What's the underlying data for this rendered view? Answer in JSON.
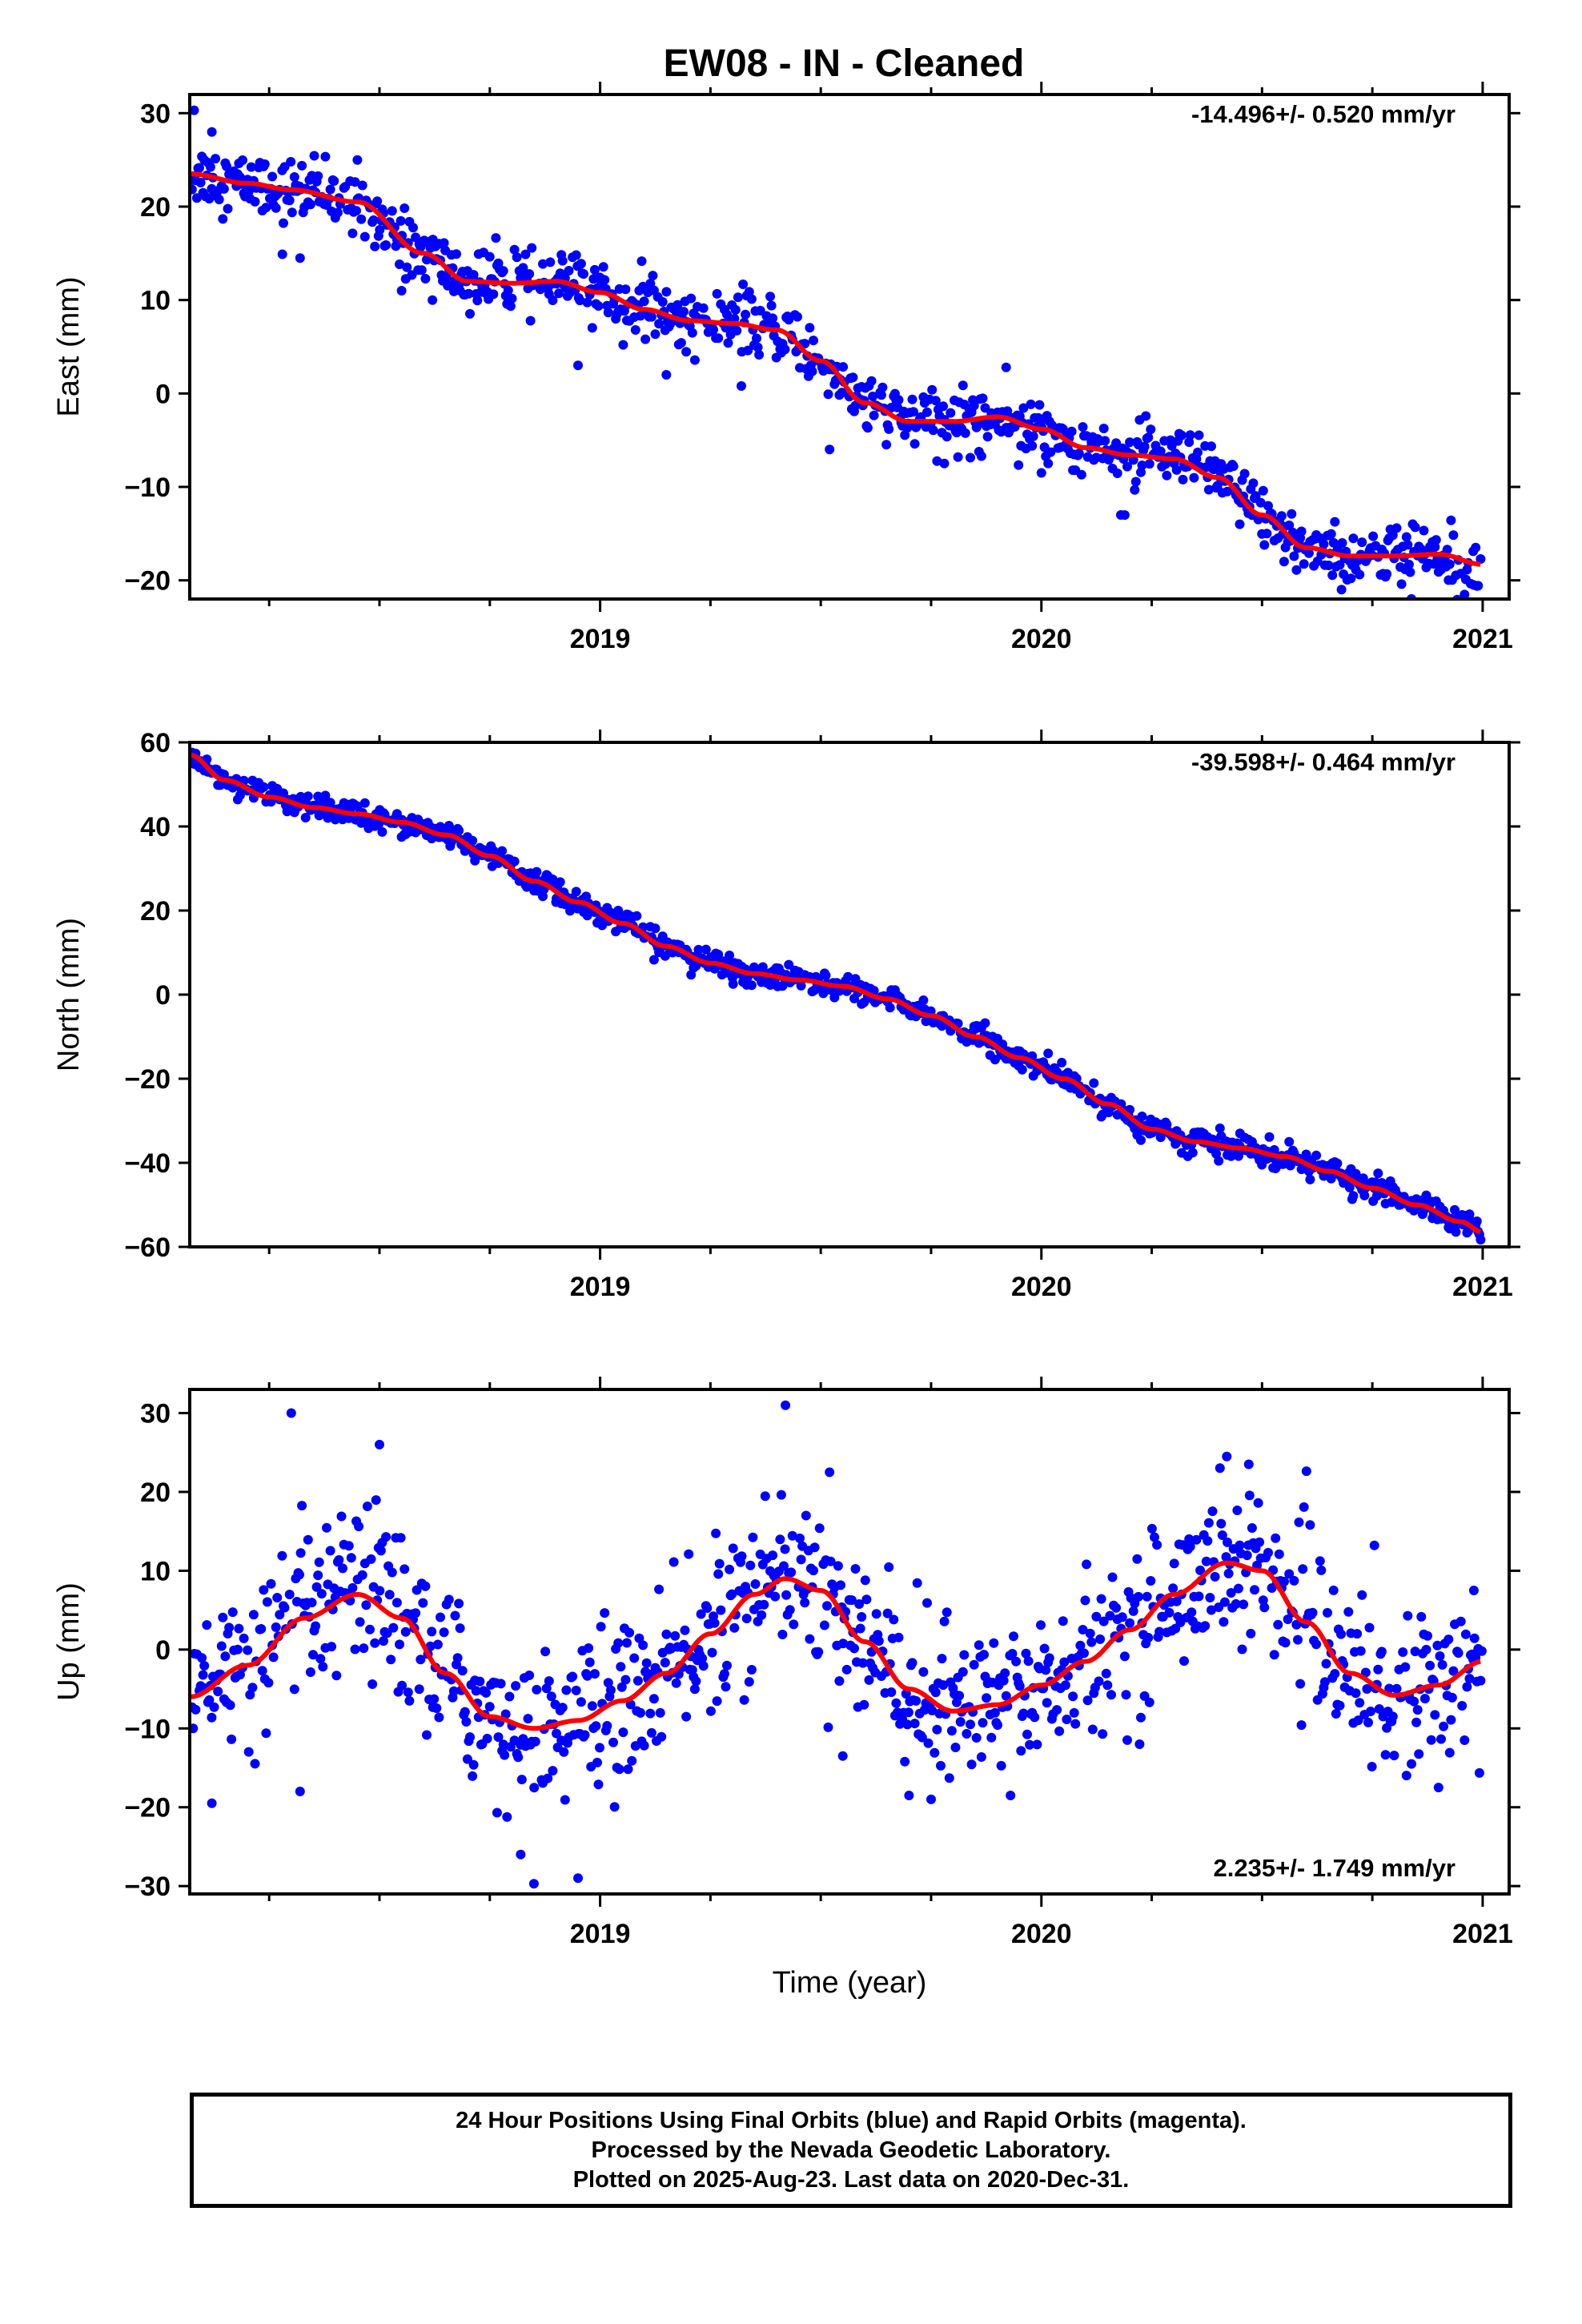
{
  "title": "EW08  - IN - Cleaned",
  "chart_data": [
    {
      "type": "scatter",
      "component": "east",
      "ylabel": "East (mm)",
      "xlabel": "",
      "rate_label": "-14.496+/- 0.520 mm/yr",
      "ylim": [
        -22,
        32
      ],
      "yticks": [
        -20,
        -10,
        0,
        10,
        20,
        30
      ],
      "xlim": [
        2018.25,
        2021.06
      ],
      "xticks": [
        2019,
        2020,
        2021
      ],
      "x_minor_ticks": [
        2018.25,
        2018.5,
        2018.75,
        2019.25,
        2019.5,
        2019.75,
        2020.25,
        2020.5,
        2020.75
      ],
      "colors": {
        "points": "#0000ff",
        "model": "#ff0000"
      },
      "model": {
        "x": [
          2018.07,
          2018.2,
          2018.3,
          2018.45,
          2018.6,
          2018.7,
          2018.8,
          2018.9,
          2019.0,
          2019.1,
          2019.2,
          2019.3,
          2019.4,
          2019.5,
          2019.6,
          2019.7,
          2019.8,
          2019.9,
          2020.0,
          2020.1,
          2020.2,
          2020.3,
          2020.4,
          2020.5,
          2020.6,
          2020.7,
          2020.8,
          2020.9,
          2021.0
        ],
        "y": [
          23.5,
          22.5,
          21.8,
          20.5,
          15.0,
          12.0,
          11.8,
          12.0,
          10.8,
          9.0,
          7.8,
          7.5,
          6.8,
          3.5,
          -1.0,
          -3.0,
          -3.0,
          -2.5,
          -3.8,
          -5.8,
          -6.6,
          -7.0,
          -9.0,
          -13.0,
          -16.5,
          -17.4,
          -17.4,
          -17.2,
          -18.3
        ]
      },
      "noise": 1.6,
      "outliers": [
        [
          2018.08,
          30.3
        ],
        [
          2018.12,
          28.0
        ],
        [
          2018.28,
          14.9
        ],
        [
          2018.32,
          14.5
        ],
        [
          2018.45,
          25.0
        ],
        [
          2018.55,
          11.0
        ],
        [
          2018.62,
          10.0
        ],
        [
          2018.95,
          3.0
        ],
        [
          2019.15,
          2.0
        ],
        [
          2019.32,
          0.8
        ],
        [
          2019.52,
          -6.0
        ],
        [
          2019.78,
          -7.5
        ],
        [
          2019.92,
          2.8
        ],
        [
          2020.0,
          -8.5
        ],
        [
          2020.18,
          -13.0
        ],
        [
          2020.55,
          -18.0
        ],
        [
          2020.68,
          -21.0
        ],
        [
          2020.98,
          -20.5
        ]
      ]
    },
    {
      "type": "scatter",
      "component": "north",
      "ylabel": "North (mm)",
      "xlabel": "",
      "rate_label": "-39.598+/- 0.464 mm/yr",
      "ylim": [
        -60,
        60
      ],
      "yticks": [
        -60,
        -40,
        -20,
        0,
        20,
        40,
        60
      ],
      "xlim": [
        2018.25,
        2021.06
      ],
      "xticks": [
        2019,
        2020,
        2021
      ],
      "x_minor_ticks": [
        2018.25,
        2018.5,
        2018.75,
        2019.25,
        2019.5,
        2019.75,
        2020.25,
        2020.5,
        2020.75
      ],
      "colors": {
        "points": "#0000ff",
        "model": "#ff0000"
      },
      "model": {
        "x": [
          2018.07,
          2018.15,
          2018.25,
          2018.35,
          2018.45,
          2018.55,
          2018.65,
          2018.75,
          2018.85,
          2018.95,
          2019.05,
          2019.15,
          2019.25,
          2019.35,
          2019.45,
          2019.55,
          2019.65,
          2019.75,
          2019.85,
          2019.95,
          2020.05,
          2020.15,
          2020.25,
          2020.35,
          2020.45,
          2020.55,
          2020.65,
          2020.75,
          2020.85,
          2020.95,
          2021.0
        ],
        "y": [
          57.0,
          51.0,
          47.0,
          44.5,
          43.0,
          41.0,
          38.0,
          33.0,
          27.0,
          22.0,
          17.0,
          11.5,
          7.5,
          5.0,
          3.5,
          2.0,
          -1.0,
          -5.0,
          -10.0,
          -15.0,
          -20.0,
          -26.0,
          -32.0,
          -35.0,
          -36.5,
          -38.5,
          -42.0,
          -46.0,
          -50.0,
          -54.0,
          -56.5
        ]
      },
      "noise": 1.4,
      "outliers": [
        [
          2018.55,
          37.5
        ],
        [
          2018.9,
          22.0
        ],
        [
          2019.3,
          4.0
        ],
        [
          2020.45,
          -33.0
        ],
        [
          2020.6,
          -38.0
        ]
      ]
    },
    {
      "type": "scatter",
      "component": "up",
      "ylabel": "Up (mm)",
      "xlabel": "Time (year)",
      "rate_label": "2.235+/- 1.749 mm/yr",
      "ylim": [
        -31,
        33
      ],
      "yticks": [
        -30,
        -20,
        -10,
        0,
        10,
        20,
        30
      ],
      "xlim": [
        2018.25,
        2021.06
      ],
      "xticks": [
        2019,
        2020,
        2021
      ],
      "x_minor_ticks": [
        2018.25,
        2018.5,
        2018.75,
        2019.25,
        2019.5,
        2019.75,
        2020.25,
        2020.5,
        2020.75
      ],
      "colors": {
        "points": "#0000ff",
        "model": "#ff0000"
      },
      "model": {
        "x": [
          2018.07,
          2018.2,
          2018.33,
          2018.45,
          2018.55,
          2018.65,
          2018.75,
          2018.85,
          2018.95,
          2019.05,
          2019.15,
          2019.25,
          2019.35,
          2019.42,
          2019.5,
          2019.6,
          2019.7,
          2019.8,
          2019.9,
          2020.0,
          2020.1,
          2020.2,
          2020.3,
          2020.42,
          2020.5,
          2020.6,
          2020.7,
          2020.8,
          2020.9,
          2021.0
        ],
        "y": [
          -6.0,
          -2.0,
          4.0,
          7.0,
          4.0,
          -3.0,
          -8.5,
          -10.0,
          -9.0,
          -6.5,
          -3.0,
          2.0,
          7.0,
          9.0,
          7.5,
          1.0,
          -5.0,
          -7.8,
          -7.0,
          -4.5,
          -1.5,
          2.5,
          7.0,
          11.0,
          10.0,
          3.5,
          -3.0,
          -5.8,
          -4.5,
          -1.5
        ]
      },
      "noise": 5.0,
      "outliers": [
        [
          2018.3,
          30.0
        ],
        [
          2018.5,
          26.0
        ],
        [
          2018.12,
          -19.5
        ],
        [
          2018.32,
          -18.0
        ],
        [
          2018.95,
          -29.0
        ],
        [
          2018.85,
          -29.7
        ],
        [
          2018.82,
          -26.0
        ],
        [
          2019.42,
          31.0
        ],
        [
          2019.52,
          22.5
        ],
        [
          2019.55,
          -13.5
        ],
        [
          2019.7,
          -18.5
        ],
        [
          2019.75,
          -19.0
        ],
        [
          2019.93,
          -18.5
        ],
        [
          2020.42,
          24.5
        ],
        [
          2020.47,
          23.5
        ],
        [
          2020.9,
          -17.5
        ],
        [
          2020.98,
          7.5
        ]
      ]
    }
  ],
  "footer": {
    "line1": "24 Hour Positions Using Final Orbits (blue) and Rapid Orbits (magenta).",
    "line2": "Processed by the Nevada Geodetic Laboratory.",
    "line3": "Plotted on 2025-Aug-23. Last data on 2020-Dec-31."
  }
}
